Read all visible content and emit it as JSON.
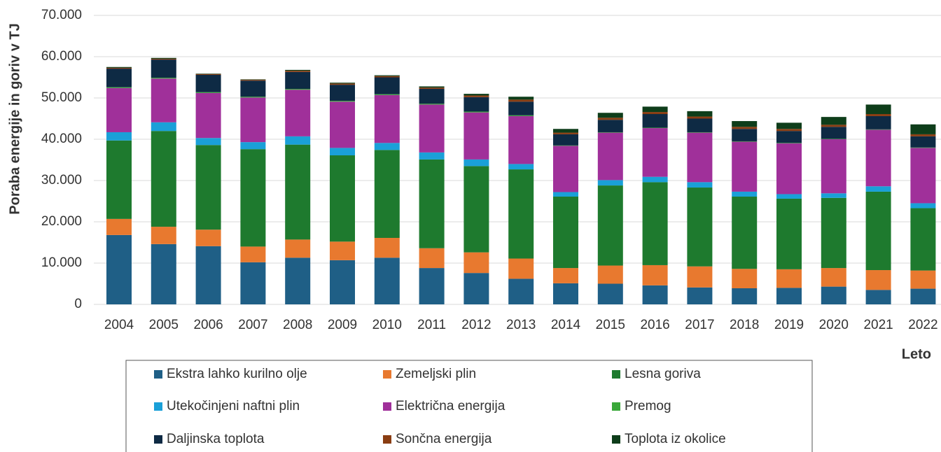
{
  "chart_data": {
    "type": "stacked_bar",
    "y_label": "Poraba energije in goriv v TJ",
    "x_label": "Leto",
    "categories": [
      "2004",
      "2005",
      "2006",
      "2007",
      "2008",
      "2009",
      "2010",
      "2011",
      "2012",
      "2013",
      "2014",
      "2015",
      "2016",
      "2017",
      "2018",
      "2019",
      "2020",
      "2021",
      "2022"
    ],
    "ylim": [
      0,
      70000
    ],
    "yticks": [
      0,
      {
        "value": 10000,
        "label": "10.000"
      },
      {
        "value": 20000,
        "label": "20.000"
      },
      {
        "value": 30000,
        "label": "30.000"
      },
      {
        "value": 40000,
        "label": "40.000"
      },
      {
        "value": 50000,
        "label": "50.000"
      },
      {
        "value": 60000,
        "label": "60.000"
      },
      {
        "value": 70000,
        "label": "70.000"
      }
    ],
    "grid": true,
    "series": [
      {
        "name": "Ekstra lahko kurilno olje",
        "color": "#1f5f86",
        "values": [
          16800,
          14600,
          14100,
          10200,
          11300,
          10700,
          11300,
          8800,
          7600,
          6200,
          5100,
          5000,
          4600,
          4100,
          3900,
          4000,
          4300,
          3500,
          3800
        ]
      },
      {
        "name": "Zemeljski plin",
        "color": "#e8792f",
        "values": [
          3900,
          4200,
          4000,
          3800,
          4400,
          4500,
          4800,
          4800,
          5000,
          4900,
          3700,
          4400,
          4900,
          5100,
          4700,
          4500,
          4500,
          4800,
          4400
        ]
      },
      {
        "name": "Lesna goriva",
        "color": "#1e7a2e",
        "values": [
          19000,
          23200,
          20500,
          23600,
          23000,
          20900,
          21300,
          21500,
          20900,
          21600,
          17300,
          19400,
          20100,
          19100,
          17500,
          17100,
          17000,
          19000,
          15100
        ]
      },
      {
        "name": "Utekočinjeni naftni plin",
        "color": "#1aa0d8",
        "values": [
          2000,
          2100,
          1700,
          1700,
          2000,
          1800,
          1700,
          1700,
          1600,
          1300,
          1100,
          1300,
          1300,
          1300,
          1200,
          1100,
          1100,
          1300,
          1200
        ]
      },
      {
        "name": "Električna energija",
        "color": "#a0309a",
        "values": [
          10700,
          10600,
          10900,
          10800,
          11300,
          11200,
          11600,
          11600,
          11400,
          11600,
          11200,
          11500,
          11800,
          12000,
          12100,
          12300,
          13100,
          13700,
          13400
        ]
      },
      {
        "name": "Premog",
        "color": "#3aa83a",
        "values": [
          200,
          200,
          200,
          200,
          200,
          200,
          200,
          200,
          200,
          200,
          100,
          100,
          100,
          100,
          100,
          100,
          100,
          100,
          100
        ]
      },
      {
        "name": "Daljinska toplota",
        "color": "#0e2a44",
        "values": [
          4500,
          4400,
          4200,
          3900,
          4100,
          3900,
          4100,
          3600,
          3500,
          3300,
          2700,
          3000,
          3300,
          3300,
          3000,
          2900,
          2900,
          3200,
          2700
        ]
      },
      {
        "name": "Sončna energija",
        "color": "#8a3d12",
        "values": [
          200,
          200,
          200,
          200,
          300,
          300,
          300,
          300,
          400,
          500,
          400,
          500,
          500,
          500,
          500,
          500,
          500,
          500,
          500
        ]
      },
      {
        "name": "Toplota iz okolice",
        "color": "#0e3d1a",
        "values": [
          200,
          200,
          100,
          100,
          200,
          200,
          200,
          300,
          400,
          700,
          900,
          1200,
          1300,
          1300,
          1400,
          1500,
          1900,
          2300,
          2400
        ]
      }
    ]
  }
}
